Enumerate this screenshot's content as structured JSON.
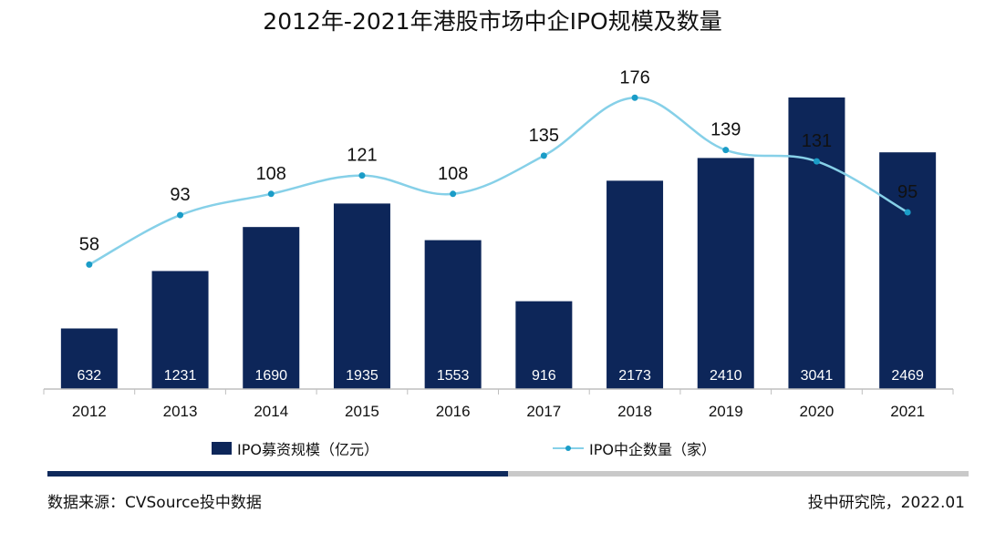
{
  "chart_data": {
    "title": "2012年-2021年港股市场中企IPO规模及数量",
    "type": "bar+line",
    "categories": [
      "2012",
      "2013",
      "2014",
      "2015",
      "2016",
      "2017",
      "2018",
      "2019",
      "2020",
      "2021"
    ],
    "series": [
      {
        "name": "IPO募资规模（亿元）",
        "type": "bar",
        "values": [
          632,
          1231,
          1690,
          1935,
          1553,
          916,
          2173,
          2410,
          3041,
          2469
        ]
      },
      {
        "name": "IPO中企数量（家）",
        "type": "line",
        "values": [
          58,
          93,
          108,
          121,
          108,
          135,
          176,
          139,
          131,
          95
        ]
      }
    ],
    "bar_ylim": [
      0,
      3600
    ],
    "line_ylim": [
      -30,
      200
    ],
    "grid": false,
    "legend": "bottom"
  },
  "colors": {
    "bar": "#0d2659",
    "line": "#86d0e8",
    "marker": "#1a9cc7",
    "axis": "#bfbfbf",
    "progress_fill": "#0f2a5c",
    "progress_track": "#c9c9c9"
  },
  "progress": {
    "value": 0.5
  },
  "footer": {
    "source": "数据来源：CVSource投中数据",
    "credit": "投中研究院，2022.01"
  }
}
